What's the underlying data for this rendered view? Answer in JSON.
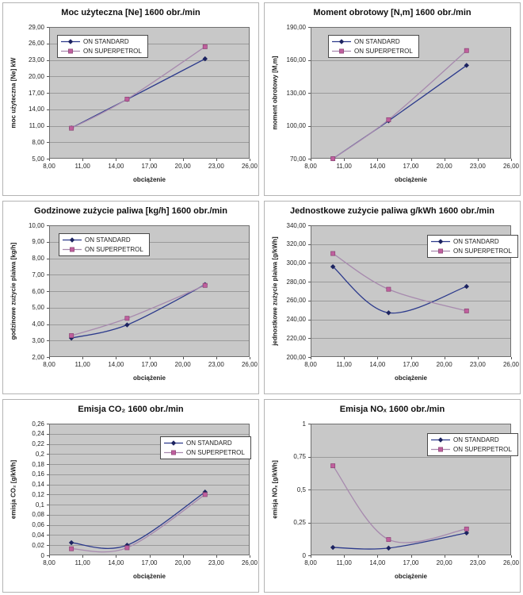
{
  "figure": {
    "background": "#ffffff",
    "panel_border": "#b4b4b4",
    "description": "Six engine test charts at 1600 rpm comparing ON STANDARD vs ON SUPERPETROL fuel"
  },
  "style": {
    "plot_bg": "#c8c8c8",
    "grid_color": "#9a9a9a",
    "plot_border": "#6f6f6f",
    "tick_color": "#555555"
  },
  "x_axis": {
    "label": "obciążenie",
    "lim": [
      8,
      26
    ],
    "ticks": [
      "8,00",
      "11,00",
      "14,00",
      "17,00",
      "20,00",
      "23,00",
      "26,00"
    ]
  },
  "legend_labels": [
    "ON STANDARD",
    "ON SUPERPETROL"
  ],
  "chart_data": [
    {
      "type": "line",
      "title": "Moc użyteczna [Ne] 1600 obr./min",
      "ylabel": "moc użyteczna [Ne] kW",
      "ylim": [
        5,
        29
      ],
      "yticks": [
        "5,00",
        "8,00",
        "11,00",
        "14,00",
        "17,00",
        "20,00",
        "23,00",
        "26,00",
        "29,00"
      ],
      "grid": "horizontal",
      "legend_pos": {
        "x": 68,
        "y": 40
      },
      "x": [
        10,
        15,
        22
      ],
      "series": [
        {
          "name": "ON STANDARD",
          "marker": "diamond",
          "line_color": "#2c3a8c",
          "marker_color": "#1c2360",
          "values": [
            10.6,
            15.8,
            23.2
          ]
        },
        {
          "name": "ON SUPERPETROL",
          "marker": "square",
          "line_color": "#a78aae",
          "marker_color": "#c05f9e",
          "values": [
            10.55,
            15.85,
            25.4
          ]
        }
      ]
    },
    {
      "type": "line",
      "title": "Moment obrotowy [N,m] 1600 obr./min",
      "ylabel": "moment obrotowy [M,m]",
      "ylim": [
        70,
        190
      ],
      "yticks": [
        "70,00",
        "100,00",
        "130,00",
        "160,00",
        "190,00"
      ],
      "grid": "horizontal",
      "legend_pos": {
        "x": 80,
        "y": 40
      },
      "x": [
        10,
        15,
        22
      ],
      "series": [
        {
          "name": "ON STANDARD",
          "marker": "diamond",
          "line_color": "#2c3a8c",
          "marker_color": "#1c2360",
          "values": [
            70,
            104.5,
            155
          ]
        },
        {
          "name": "ON SUPERPETROL",
          "marker": "square",
          "line_color": "#a78aae",
          "marker_color": "#c05f9e",
          "values": [
            70,
            105.5,
            168.5
          ]
        }
      ]
    },
    {
      "type": "line",
      "title": "Godzinowe zużycie paliwa [kg/h] 1600 obr./min",
      "ylabel": "godzinowe zużycie plaiwa [kg/h]",
      "ylim": [
        2,
        10
      ],
      "yticks": [
        "2,00",
        "3,00",
        "4,00",
        "5,00",
        "6,00",
        "7,00",
        "8,00",
        "9,00",
        "10,00"
      ],
      "grid": "horizontal",
      "legend_pos": {
        "x": 70,
        "y": 40
      },
      "x": [
        10,
        15,
        22
      ],
      "series": [
        {
          "name": "ON STANDARD",
          "marker": "diamond",
          "line_color": "#2c3a8c",
          "marker_color": "#1c2360",
          "values": [
            3.15,
            3.95,
            6.4
          ]
        },
        {
          "name": "ON SUPERPETROL",
          "marker": "square",
          "line_color": "#a78aae",
          "marker_color": "#c05f9e",
          "values": [
            3.3,
            4.35,
            6.35
          ]
        }
      ]
    },
    {
      "type": "line",
      "title": "Jednostkowe zużycie paliwa g/kWh 1600 obr./min",
      "ylabel": "jednostkowe zużycie plaiwa [g/kWh]",
      "ylim": [
        200,
        340
      ],
      "yticks": [
        "200,00",
        "220,00",
        "240,00",
        "260,00",
        "280,00",
        "300,00",
        "320,00",
        "340,00"
      ],
      "grid": "horizontal",
      "legend_pos": {
        "x": 205,
        "y": 42
      },
      "x": [
        10,
        15,
        22
      ],
      "series": [
        {
          "name": "ON STANDARD",
          "marker": "diamond",
          "line_color": "#2c3a8c",
          "marker_color": "#1c2360",
          "values": [
            296,
            247,
            275
          ]
        },
        {
          "name": "ON SUPERPETROL",
          "marker": "square",
          "line_color": "#a78aae",
          "marker_color": "#c05f9e",
          "values": [
            310,
            272,
            249
          ]
        }
      ]
    },
    {
      "type": "line",
      "title": "Emisja CO₂ 1600 obr./min",
      "ylabel": "emisja CO₂ [g/kWh]",
      "ylim": [
        0,
        0.26
      ],
      "yticks": [
        "0",
        "0,02",
        "0,04",
        "0,06",
        "0,08",
        "0,1",
        "0,12",
        "0,14",
        "0,16",
        "0,18",
        "0,2",
        "0,22",
        "0,24",
        "0,26"
      ],
      "grid": "horizontal",
      "legend_pos": {
        "x": 198,
        "y": 46
      },
      "x": [
        10,
        15,
        22
      ],
      "series": [
        {
          "name": "ON STANDARD",
          "marker": "diamond",
          "line_color": "#2c3a8c",
          "marker_color": "#1c2360",
          "values": [
            0.025,
            0.02,
            0.125
          ]
        },
        {
          "name": "ON SUPERPETROL",
          "marker": "square",
          "line_color": "#a78aae",
          "marker_color": "#c05f9e",
          "values": [
            0.013,
            0.015,
            0.12
          ]
        }
      ]
    },
    {
      "type": "line",
      "title": "Emisja NOₓ 1600 obr./min",
      "ylabel": "emisja NOₓ [g/kWh]",
      "ylim": [
        0,
        1
      ],
      "yticks": [
        "0",
        "0,25",
        "0,5",
        "0,75",
        "1"
      ],
      "grid": "horizontal",
      "legend_pos": {
        "x": 205,
        "y": 42
      },
      "x": [
        10,
        15,
        22
      ],
      "series": [
        {
          "name": "ON STANDARD",
          "marker": "diamond",
          "line_color": "#2c3a8c",
          "marker_color": "#1c2360",
          "values": [
            0.06,
            0.055,
            0.17
          ]
        },
        {
          "name": "ON SUPERPETROL",
          "marker": "square",
          "line_color": "#a78aae",
          "marker_color": "#c05f9e",
          "values": [
            0.68,
            0.12,
            0.2
          ]
        }
      ]
    }
  ]
}
